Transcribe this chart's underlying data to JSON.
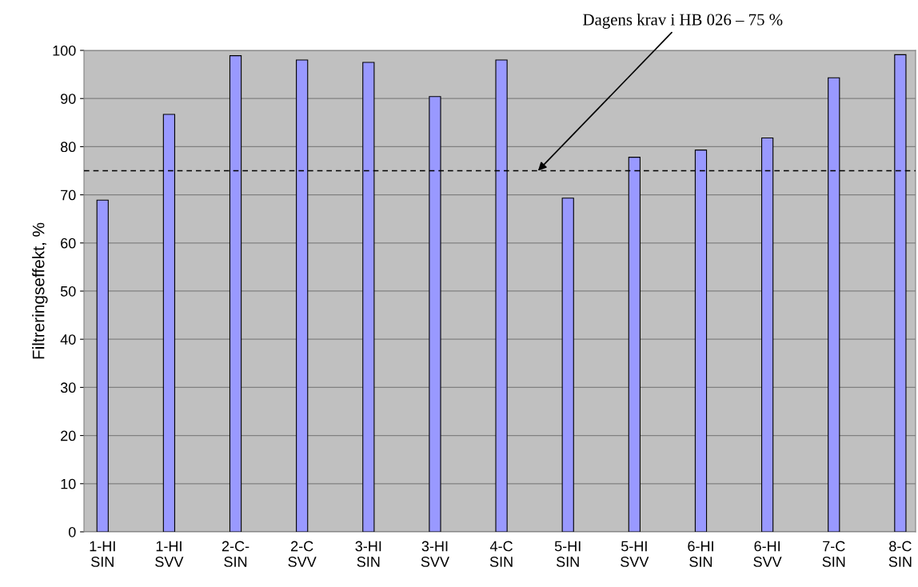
{
  "chart_data": {
    "type": "bar",
    "ylabel": "Filtreringseffekt, %",
    "categories": [
      "1-HI\nSIN",
      "1-HI\nSVV",
      "2-C-\nSIN",
      "2-C\nSVV",
      "3-HI\nSIN",
      "3-HI\nSVV",
      "4-C\nSIN",
      "5-HI\nSIN",
      "5-HI\nSVV",
      "6-HI\nSIN",
      "6-HI\nSVV",
      "7-C\nSIN",
      "8-C\nSIN"
    ],
    "values": [
      68.9,
      86.7,
      98.9,
      98.0,
      97.5,
      90.4,
      98.0,
      69.3,
      77.8,
      79.3,
      81.8,
      94.3,
      99.1
    ],
    "color": "#9999ff",
    "ylim": [
      0,
      100
    ],
    "yticks": [
      0,
      10,
      20,
      30,
      40,
      50,
      60,
      70,
      80,
      90,
      100
    ],
    "grid": "y",
    "ref_lines": [
      {
        "axis": "y",
        "value": 75,
        "label": "Dagens krav i HB 026 – 75 %",
        "color": "#000000",
        "line_style": "dashed"
      }
    ]
  }
}
